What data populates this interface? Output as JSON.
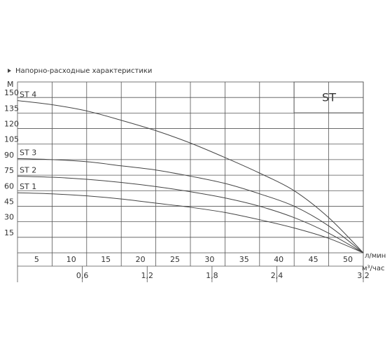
{
  "chart_data": {
    "type": "line",
    "title": "Напорно-расходные характеристики",
    "y_label": "М",
    "x_label": "л/мин",
    "x2_label": "м³/час",
    "annotation": "ST",
    "x": [
      0,
      5,
      10,
      15,
      20,
      25,
      30,
      35,
      40,
      45,
      50
    ],
    "series": [
      {
        "name": "ST 4",
        "color": "#444444",
        "values": [
          147,
          143,
          137,
          128,
          118,
          106,
          92,
          77,
          60,
          34,
          0
        ]
      },
      {
        "name": "ST 3",
        "color": "#444444",
        "values": [
          91,
          90,
          88,
          84,
          80,
          74,
          67,
          57,
          45,
          26,
          0
        ]
      },
      {
        "name": "ST 2",
        "color": "#444444",
        "values": [
          74,
          73,
          71,
          68,
          64,
          59,
          53,
          45,
          34,
          19,
          0
        ]
      },
      {
        "name": "ST 1",
        "color": "#444444",
        "values": [
          58,
          57,
          55,
          52,
          48,
          44,
          39,
          32,
          24,
          14,
          0
        ]
      }
    ],
    "xlim": [
      0,
      50
    ],
    "xticks": [
      5,
      10,
      15,
      20,
      25,
      30,
      35,
      40,
      45,
      50
    ],
    "x2lim": [
      0,
      3.2
    ],
    "x2ticks": [
      {
        "value": 0.6,
        "label": "0,6"
      },
      {
        "value": 1.2,
        "label": "1,2"
      },
      {
        "value": 1.8,
        "label": "1,8"
      },
      {
        "value": 2.4,
        "label": "2,4"
      },
      {
        "value": 3.2,
        "label": "3,2"
      }
    ],
    "ylim": [
      0,
      165
    ],
    "yticks": [
      15,
      30,
      45,
      60,
      75,
      90,
      105,
      120,
      135,
      150
    ],
    "grid": true
  }
}
